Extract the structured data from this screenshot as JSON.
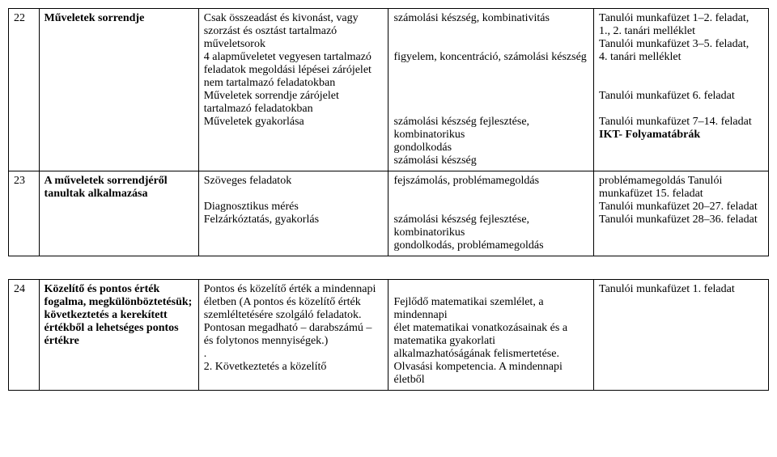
{
  "upperTable": {
    "rows": [
      {
        "num": "22",
        "title": "Műveletek sorrendje",
        "content": "Csak összeadást és kivonást, vagy szorzást és osztást tartalmazó műveletsorok\n 4 alapműveletet vegyesen tartalmazó feladatok megoldási lépései zárójelet nem tartalmazó feladatokban\n Műveletek sorrendje zárójelet tartalmazó feladatokban\n Műveletek gyakorlása",
        "skills": "számolási készség, kombinativitás\n\n\nfigyelem, koncentráció, számolási készség\n\n\n\n\nszámolási készség fejlesztése, kombinatorikus\ngondolkodás\nszámolási készség",
        "notes": "Tanulói munkafüzet 1–2. feladat,\n1., 2. tanári melléklet\nTanulói munkafüzet 3–5. feladat,\n4. tanári melléklet\n\n\nTanulói munkafüzet 6. feladat\n\nTanulói munkafüzet 7–14. feladat\nIKT- Folyamatábrák"
      },
      {
        "num": "23",
        "title": "A műveletek sorrendjéről tanultak alkalmazása",
        "content": "Szöveges feladatok\n\nDiagnosztikus mérés\nFelzárkóztatás, gyakorlás",
        "skills": "fejszámolás, problémamegoldás\n\n\nszámolási készség fejlesztése, kombinatorikus\ngondolkodás, problémamegoldás",
        "notes": "problémamegoldás Tanulói munkafüzet 15. feladat\nTanulói munkafüzet 20–27. feladat\nTanulói munkafüzet 28–36. feladat"
      }
    ]
  },
  "lowerTable": {
    "rows": [
      {
        "num": "24",
        "title": "Közelítő és pontos érték fogalma, megkülönböztetésük; következtetés a kerekített értékből a lehetséges pontos értékre",
        "content": "Pontos és közelítő érték a mindennapi életben (A pontos és közelítő érték szemléltetésére szolgáló feladatok. Pontosan megadható – darabszámú – és folytonos mennyiségek.)\n.\n2. Következtetés a közelítő",
        "skills": "\nFejlődő matematikai szemlélet, a mindennapi\nélet matematikai vonatkozásainak és a matematika gyakorlati alkalmazhatóságának felismertetése.\nOlvasási kompetencia. A mindennapi életből",
        "notes": "Tanulói munkafüzet 1. feladat"
      }
    ]
  }
}
